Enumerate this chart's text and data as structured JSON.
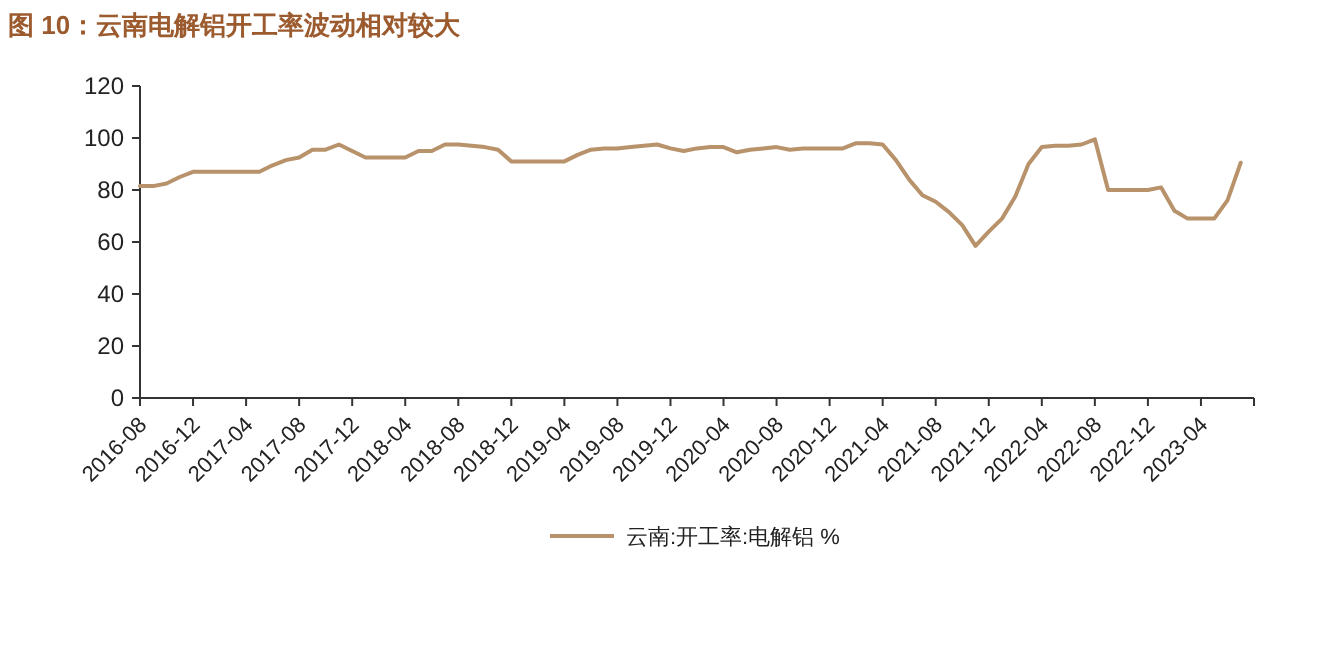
{
  "chart_data": {
    "type": "line",
    "title": "图 10：云南电解铝开工率波动相对较大",
    "x": [
      "2016-08",
      "2016-09",
      "2016-10",
      "2016-11",
      "2016-12",
      "2017-01",
      "2017-02",
      "2017-03",
      "2017-04",
      "2017-05",
      "2017-06",
      "2017-07",
      "2017-08",
      "2017-09",
      "2017-10",
      "2017-11",
      "2017-12",
      "2018-01",
      "2018-02",
      "2018-03",
      "2018-04",
      "2018-05",
      "2018-06",
      "2018-07",
      "2018-08",
      "2018-09",
      "2018-10",
      "2018-11",
      "2018-12",
      "2019-01",
      "2019-02",
      "2019-03",
      "2019-04",
      "2019-05",
      "2019-06",
      "2019-07",
      "2019-08",
      "2019-09",
      "2019-10",
      "2019-11",
      "2019-12",
      "2020-01",
      "2020-02",
      "2020-03",
      "2020-04",
      "2020-05",
      "2020-06",
      "2020-07",
      "2020-08",
      "2020-09",
      "2020-10",
      "2020-11",
      "2020-12",
      "2021-01",
      "2021-02",
      "2021-03",
      "2021-04",
      "2021-05",
      "2021-06",
      "2021-07",
      "2021-08",
      "2021-09",
      "2021-10",
      "2021-11",
      "2021-12",
      "2022-01",
      "2022-02",
      "2022-03",
      "2022-04",
      "2022-05",
      "2022-06",
      "2022-07",
      "2022-08",
      "2022-09",
      "2022-10",
      "2022-11",
      "2022-12",
      "2023-01",
      "2023-02",
      "2023-03",
      "2023-04",
      "2023-05",
      "2023-06",
      "2023-07"
    ],
    "series": [
      {
        "name": "云南:开工率:电解铝 %",
        "color": "#b8926a",
        "values": [
          81.5,
          81.5,
          82.5,
          85,
          87,
          87,
          87,
          87,
          87,
          87,
          89.5,
          91.5,
          92.5,
          95.5,
          95.5,
          97.5,
          95,
          92.5,
          92.5,
          92.5,
          92.5,
          95,
          95,
          97.5,
          97.5,
          97,
          96.5,
          95.5,
          91,
          91,
          91,
          91,
          91,
          93.5,
          95.5,
          96,
          96,
          96.5,
          97,
          97.5,
          96,
          95,
          96,
          96.5,
          96.5,
          94.5,
          95.5,
          96,
          96.5,
          95.5,
          96,
          96,
          96,
          96,
          98,
          98,
          97.5,
          91.5,
          84,
          78,
          75.5,
          71.5,
          66.5,
          58.5,
          64,
          69,
          77.5,
          90,
          96.5,
          97,
          97,
          97.5,
          99.5,
          80,
          80,
          80,
          80,
          81,
          72,
          69,
          69,
          69,
          76,
          90.5
        ]
      }
    ],
    "xlim": [
      "2016-08",
      "2023-08"
    ],
    "xticks": [
      "2016-08",
      "2016-12",
      "2017-04",
      "2017-08",
      "2017-12",
      "2018-04",
      "2018-08",
      "2018-12",
      "2019-04",
      "2019-08",
      "2019-12",
      "2020-04",
      "2020-08",
      "2020-12",
      "2021-04",
      "2021-08",
      "2021-12",
      "2022-04",
      "2022-08",
      "2022-12",
      "2023-04"
    ],
    "ylim": [
      0,
      120
    ],
    "yticks": [
      0,
      20,
      40,
      60,
      80,
      100,
      120
    ],
    "grid": false,
    "legend": "bottom",
    "marker": "none",
    "line_style": "solid"
  }
}
